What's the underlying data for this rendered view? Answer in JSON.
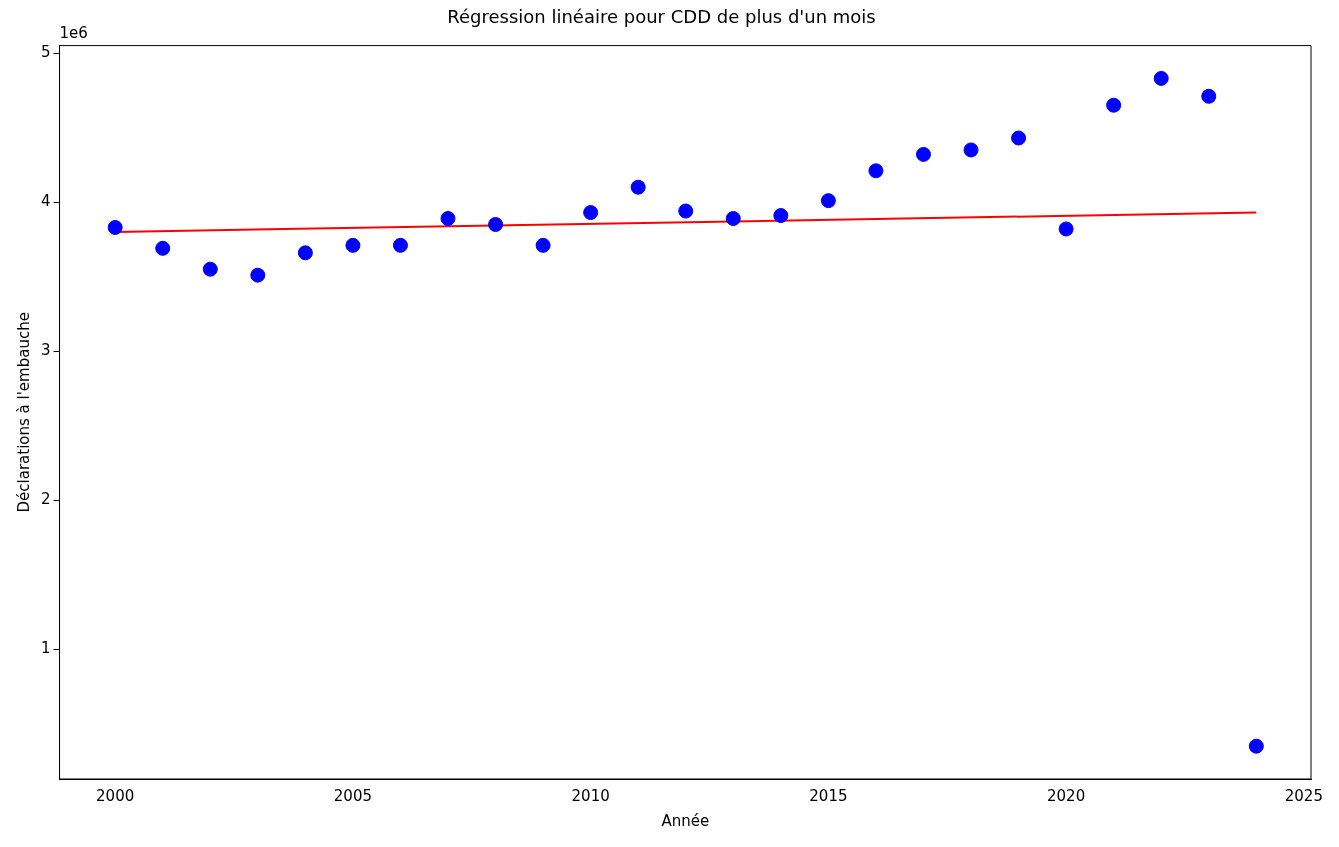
{
  "chart_data": {
    "type": "scatter",
    "title": "Régression linéaire pour CDD de plus d'un mois",
    "xlabel": "Année",
    "ylabel": "Déclarations à l'embauche",
    "annotations": [
      "1e6"
    ],
    "x": [
      2000,
      2001,
      2002,
      2003,
      2004,
      2005,
      2006,
      2007,
      2008,
      2009,
      2010,
      2011,
      2012,
      2013,
      2014,
      2015,
      2016,
      2017,
      2018,
      2019,
      2020,
      2021,
      2022,
      2023,
      2024
    ],
    "series": [
      {
        "color": "#0000ff",
        "marker": "circle",
        "values": [
          3.83,
          3.69,
          3.55,
          3.51,
          3.66,
          3.71,
          3.71,
          3.89,
          3.85,
          3.71,
          3.93,
          4.1,
          3.94,
          3.89,
          3.91,
          4.01,
          4.21,
          4.32,
          4.35,
          4.43,
          3.82,
          4.65,
          4.83,
          4.71,
          0.35
        ]
      },
      {
        "type": "line",
        "color": "#ff0000",
        "marker": "none",
        "x": [
          2000,
          2024
        ],
        "values": [
          3.8,
          3.93
        ]
      }
    ],
    "xlim": [
      1998.83,
      2025.15
    ],
    "xticks": [
      2000,
      2005,
      2010,
      2015,
      2020,
      2025
    ],
    "ylim": [
      0.13,
      5.05
    ],
    "yticks": [
      1,
      2,
      3,
      4,
      5
    ],
    "grid": false,
    "legend": false
  }
}
